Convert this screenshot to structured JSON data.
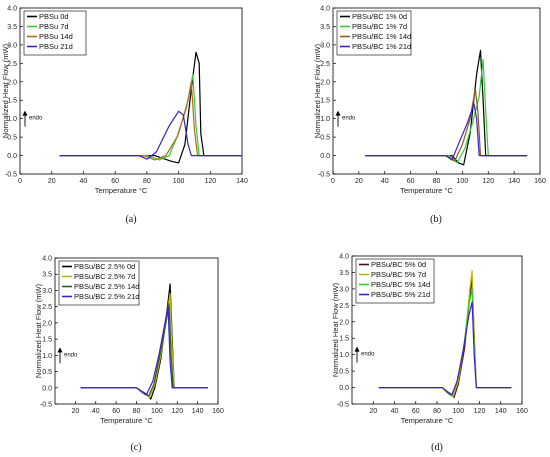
{
  "chart_data": [
    {
      "type": "line",
      "caption": "(a)",
      "xlabel": "Temperature °C",
      "ylabel": "Normalized Heat Flow (mW)",
      "xlim": [
        0,
        140
      ],
      "ylim": [
        -0.5,
        4.0
      ],
      "xticks": [
        0,
        20,
        40,
        60,
        80,
        100,
        120,
        140
      ],
      "yticks": [
        -0.5,
        0.0,
        0.5,
        1.0,
        1.5,
        2.0,
        2.5,
        3.0,
        3.5,
        4.0
      ],
      "annotation": "endo",
      "legend_position": "top-left",
      "series": [
        {
          "name": "PBSu 0d",
          "color": "#000000",
          "values": [
            [
              25,
              0
            ],
            [
              60,
              0
            ],
            [
              85,
              0
            ],
            [
              95,
              -0.15
            ],
            [
              100,
              -0.2
            ],
            [
              104,
              0.3
            ],
            [
              108,
              1.8
            ],
            [
              111,
              2.8
            ],
            [
              113,
              2.5
            ],
            [
              114,
              0.6
            ],
            [
              116,
              0
            ],
            [
              140,
              0
            ]
          ]
        },
        {
          "name": "PBSu 7d",
          "color": "#33cc33",
          "values": [
            [
              25,
              0
            ],
            [
              60,
              0
            ],
            [
              80,
              0
            ],
            [
              88,
              -0.12
            ],
            [
              94,
              0
            ],
            [
              100,
              0.6
            ],
            [
              106,
              1.5
            ],
            [
              109,
              2.2
            ],
            [
              111,
              0.8
            ],
            [
              113,
              0
            ],
            [
              140,
              0
            ]
          ]
        },
        {
          "name": "PBSu 14d",
          "color": "#b5651d",
          "values": [
            [
              25,
              0
            ],
            [
              60,
              0
            ],
            [
              78,
              0
            ],
            [
              85,
              -0.12
            ],
            [
              92,
              0
            ],
            [
              99,
              0.5
            ],
            [
              105,
              1.3
            ],
            [
              108,
              2.0
            ],
            [
              110,
              0.7
            ],
            [
              112,
              0
            ],
            [
              140,
              0
            ]
          ]
        },
        {
          "name": "PBSu 21d",
          "color": "#3b1fd6",
          "values": [
            [
              25,
              0
            ],
            [
              60,
              0
            ],
            [
              75,
              0
            ],
            [
              80,
              -0.1
            ],
            [
              86,
              0.1
            ],
            [
              94,
              0.8
            ],
            [
              100,
              1.2
            ],
            [
              103,
              1.1
            ],
            [
              106,
              0.3
            ],
            [
              108,
              0
            ],
            [
              140,
              0
            ]
          ]
        }
      ]
    },
    {
      "type": "line",
      "caption": "(b)",
      "xlabel": "Temperature °C",
      "ylabel": "Normalized Heat Flow (mW)",
      "xlim": [
        0,
        160
      ],
      "ylim": [
        -0.5,
        4.0
      ],
      "xticks": [
        0,
        20,
        40,
        60,
        80,
        100,
        120,
        140,
        160
      ],
      "yticks": [
        -0.5,
        0.0,
        0.5,
        1.0,
        1.5,
        2.0,
        2.5,
        3.0,
        3.5,
        4.0
      ],
      "annotation": "endo",
      "legend_position": "top-left",
      "series": [
        {
          "name": "PBSu/BC 1% 0d",
          "color": "#000000",
          "values": [
            [
              25,
              0
            ],
            [
              80,
              0
            ],
            [
              92,
              0
            ],
            [
              97,
              -0.2
            ],
            [
              101,
              -0.25
            ],
            [
              106,
              0.6
            ],
            [
              111,
              2.2
            ],
            [
              114,
              2.85
            ],
            [
              116,
              1.5
            ],
            [
              118,
              0
            ],
            [
              150,
              0
            ]
          ]
        },
        {
          "name": "PBSu/BC 1% 7d",
          "color": "#33cc33",
          "values": [
            [
              25,
              0
            ],
            [
              80,
              0
            ],
            [
              90,
              0
            ],
            [
              96,
              -0.2
            ],
            [
              102,
              0.2
            ],
            [
              108,
              0.9
            ],
            [
              113,
              1.6
            ],
            [
              116,
              2.6
            ],
            [
              118,
              1.2
            ],
            [
              120,
              0
            ],
            [
              150,
              0
            ]
          ]
        },
        {
          "name": "PBSu/BC 1% 14d",
          "color": "#8b5a14",
          "values": [
            [
              25,
              0
            ],
            [
              80,
              0
            ],
            [
              88,
              0
            ],
            [
              94,
              -0.15
            ],
            [
              100,
              0.3
            ],
            [
              106,
              1.0
            ],
            [
              110,
              1.8
            ],
            [
              112,
              1.2
            ],
            [
              114,
              0
            ],
            [
              150,
              0
            ]
          ]
        },
        {
          "name": "PBSu/BC 1% 21d",
          "color": "#3b1fd6",
          "values": [
            [
              25,
              0
            ],
            [
              80,
              0
            ],
            [
              87,
              0
            ],
            [
              92,
              -0.12
            ],
            [
              98,
              0.4
            ],
            [
              104,
              0.9
            ],
            [
              109,
              1.4
            ],
            [
              111,
              1.0
            ],
            [
              113,
              0
            ],
            [
              150,
              0
            ]
          ]
        }
      ]
    },
    {
      "type": "line",
      "caption": "(c)",
      "xlabel": "Temperature °C",
      "ylabel": "Normalized Heat Flow (mW)",
      "xlim": [
        0,
        160
      ],
      "ylim": [
        -0.5,
        4.0
      ],
      "xticks": [
        20,
        40,
        60,
        80,
        100,
        120,
        140,
        160
      ],
      "yticks": [
        -0.5,
        0.0,
        0.5,
        1.0,
        1.5,
        2.0,
        2.5,
        3.0,
        3.5,
        4.0
      ],
      "annotation": "endo",
      "legend_position": "top-left",
      "series": [
        {
          "name": "PBSu/BC 2.5% 0d",
          "color": "#000000",
          "values": [
            [
              25,
              0
            ],
            [
              80,
              0
            ],
            [
              90,
              -0.2
            ],
            [
              94,
              -0.35
            ],
            [
              98,
              0
            ],
            [
              104,
              0.9
            ],
            [
              110,
              2.4
            ],
            [
              113,
              3.2
            ],
            [
              115,
              1.5
            ],
            [
              117,
              0
            ],
            [
              150,
              0
            ]
          ]
        },
        {
          "name": "PBSu/BC 2.5% 7d",
          "color": "#b8b800",
          "values": [
            [
              25,
              0
            ],
            [
              80,
              0
            ],
            [
              89,
              -0.2
            ],
            [
              93,
              -0.3
            ],
            [
              98,
              0.1
            ],
            [
              104,
              1.0
            ],
            [
              110,
              2.3
            ],
            [
              113,
              2.9
            ],
            [
              115,
              1.2
            ],
            [
              117,
              0
            ],
            [
              150,
              0
            ]
          ]
        },
        {
          "name": "PBSu/BC 2.5% 14d",
          "color": "#2e5e1e",
          "values": [
            [
              25,
              0
            ],
            [
              80,
              0
            ],
            [
              88,
              -0.2
            ],
            [
              92,
              -0.25
            ],
            [
              97,
              0.1
            ],
            [
              103,
              1.0
            ],
            [
              109,
              2.0
            ],
            [
              112,
              2.6
            ],
            [
              114,
              1.0
            ],
            [
              116,
              0
            ],
            [
              150,
              0
            ]
          ]
        },
        {
          "name": "PBSu/BC 2.5% 21d",
          "color": "#3b1fd6",
          "values": [
            [
              25,
              0
            ],
            [
              80,
              0
            ],
            [
              86,
              -0.15
            ],
            [
              90,
              -0.2
            ],
            [
              96,
              0.2
            ],
            [
              102,
              1.0
            ],
            [
              108,
              2.0
            ],
            [
              111,
              2.5
            ],
            [
              113,
              0.8
            ],
            [
              115,
              0
            ],
            [
              150,
              0
            ]
          ]
        }
      ]
    },
    {
      "type": "line",
      "caption": "(d)",
      "xlabel": "Temperature °C",
      "ylabel": "Normalized Heat Flow (mW)",
      "xlim": [
        0,
        160
      ],
      "ylim": [
        -0.5,
        4.0
      ],
      "xticks": [
        20,
        40,
        60,
        80,
        100,
        120,
        140,
        160
      ],
      "yticks": [
        -0.5,
        0.0,
        0.5,
        1.0,
        1.5,
        2.0,
        2.5,
        3.0,
        3.5,
        4.0
      ],
      "annotation": "endo",
      "legend_position": "top-left",
      "series": [
        {
          "name": "PBSu/BC 5% 0d",
          "color": "#4a1010",
          "values": [
            [
              25,
              0
            ],
            [
              85,
              0
            ],
            [
              93,
              -0.2
            ],
            [
              96,
              -0.3
            ],
            [
              100,
              0.1
            ],
            [
              106,
              1.2
            ],
            [
              111,
              2.8
            ],
            [
              113,
              3.3
            ],
            [
              115,
              1.6
            ],
            [
              117,
              0
            ],
            [
              150,
              0
            ]
          ]
        },
        {
          "name": "PBSu/BC 5% 7d",
          "color": "#b8b800",
          "values": [
            [
              25,
              0
            ],
            [
              85,
              0
            ],
            [
              92,
              -0.2
            ],
            [
              95,
              -0.28
            ],
            [
              100,
              0.2
            ],
            [
              106,
              1.4
            ],
            [
              111,
              3.0
            ],
            [
              113,
              3.55
            ],
            [
              115,
              1.5
            ],
            [
              117,
              0
            ],
            [
              150,
              0
            ]
          ]
        },
        {
          "name": "PBSu/BC 5% 14d",
          "color": "#33cc33",
          "values": [
            [
              25,
              0
            ],
            [
              85,
              0
            ],
            [
              91,
              -0.2
            ],
            [
              94,
              -0.25
            ],
            [
              99,
              0.2
            ],
            [
              105,
              1.2
            ],
            [
              110,
              2.5
            ],
            [
              113,
              3.0
            ],
            [
              115,
              1.2
            ],
            [
              117,
              0
            ],
            [
              150,
              0
            ]
          ]
        },
        {
          "name": "PBSu/BC 5% 21d",
          "color": "#3b1fd6",
          "values": [
            [
              25,
              0
            ],
            [
              85,
              0
            ],
            [
              90,
              -0.15
            ],
            [
              94,
              -0.22
            ],
            [
              99,
              0.2
            ],
            [
              105,
              1.2
            ],
            [
              110,
              2.2
            ],
            [
              113,
              2.6
            ],
            [
              115,
              1.0
            ],
            [
              117,
              0
            ],
            [
              150,
              0
            ]
          ]
        }
      ]
    }
  ]
}
